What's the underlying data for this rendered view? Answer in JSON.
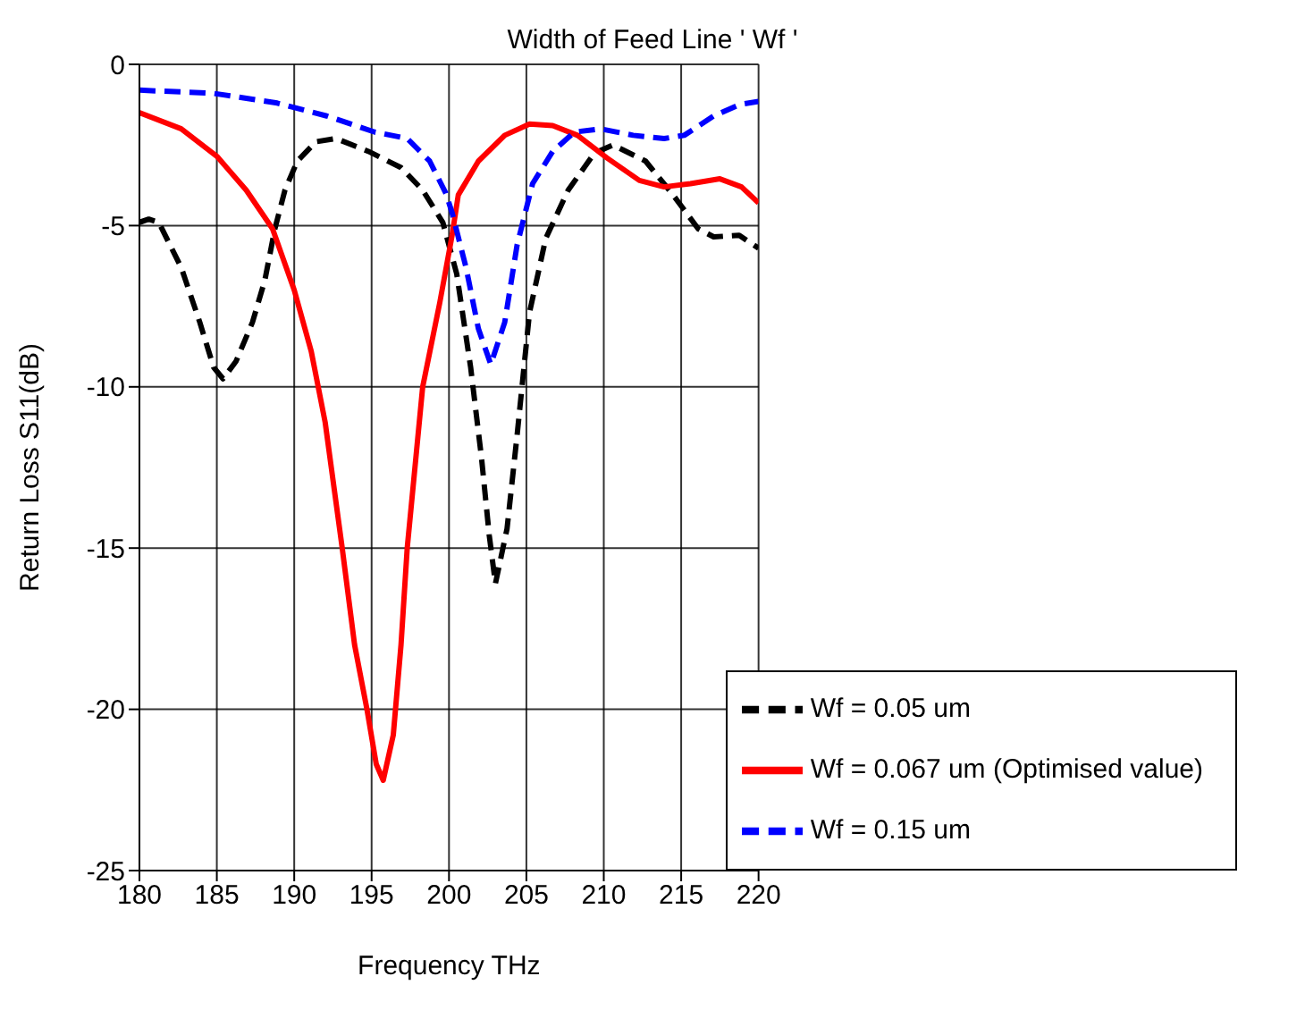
{
  "chart_data": {
    "type": "line",
    "title": "Width of Feed Line ' Wf '",
    "xlabel": "Frequency THz",
    "ylabel": "Return Loss S11(dB)",
    "xlim": [
      180,
      220
    ],
    "xticks": [
      180,
      185,
      190,
      195,
      200,
      205,
      210,
      215,
      220
    ],
    "ylim": [
      -25,
      0
    ],
    "yticks": [
      -25,
      -20,
      -15,
      -10,
      -5,
      0
    ],
    "grid": true,
    "legend": "bottom right",
    "marker": "none",
    "series": [
      {
        "name": "Wf = 0.05 um",
        "color": "#000000",
        "line_style": "dashed",
        "x": [
          180,
          180.6,
          181.25,
          182.7,
          183.9,
          184.8,
          185.4,
          186.25,
          187.3,
          188.1,
          188.75,
          189.4,
          190.2,
          191.4,
          192.7,
          194.8,
          196.9,
          198.3,
          199.6,
          200.5,
          201.4,
          202.1,
          202.6,
          203,
          203.75,
          204.4,
          205.2,
          206.25,
          207.7,
          209.4,
          210.6,
          212.7,
          214.4,
          216.1,
          217.1,
          218.75,
          220
        ],
        "values": [
          -4.9,
          -4.8,
          -4.9,
          -6.3,
          -8,
          -9.4,
          -9.75,
          -9.2,
          -8,
          -6.7,
          -5.1,
          -3.9,
          -3,
          -2.4,
          -2.3,
          -2.7,
          -3.2,
          -3.9,
          -4.9,
          -6.5,
          -9.4,
          -12.2,
          -14.6,
          -16.1,
          -14.4,
          -11.5,
          -7.7,
          -5.4,
          -3.9,
          -2.75,
          -2.5,
          -3,
          -4,
          -5.1,
          -5.35,
          -5.3,
          -5.7
        ]
      },
      {
        "name": "Wf = 0.067 um (Optimised value)",
        "color": "#ff0000",
        "line_style": "solid",
        "x": [
          180,
          182.7,
          185,
          186.9,
          188.6,
          190,
          191.1,
          192,
          193.1,
          193.9,
          194.7,
          195.3,
          195.75,
          196.4,
          196.9,
          197.3,
          197.9,
          198.3,
          199.4,
          200.2,
          200.6,
          201.9,
          203.6,
          205.2,
          206.7,
          208.3,
          210.2,
          212.3,
          213.9,
          215.6,
          217.5,
          218.9,
          220
        ],
        "values": [
          -1.5,
          -2,
          -2.85,
          -3.9,
          -5.1,
          -7,
          -8.9,
          -11.1,
          -15,
          -18,
          -20,
          -21.7,
          -22.2,
          -20.8,
          -18,
          -15,
          -12,
          -10,
          -7.4,
          -5.3,
          -4.05,
          -3,
          -2.2,
          -1.85,
          -1.9,
          -2.2,
          -2.9,
          -3.6,
          -3.8,
          -3.7,
          -3.55,
          -3.8,
          -4.3
        ]
      },
      {
        "name": "Wf = 0.15 um",
        "color": "#0000ff",
        "line_style": "dashed",
        "x": [
          180,
          184.8,
          188.9,
          192.1,
          195.2,
          197.3,
          198.75,
          199.8,
          200.2,
          201.1,
          201.9,
          202.7,
          203.6,
          204.4,
          205.4,
          206.7,
          208.1,
          209.8,
          211.9,
          213.9,
          215.2,
          217.1,
          218.75,
          220
        ],
        "values": [
          -0.8,
          -0.9,
          -1.2,
          -1.6,
          -2.1,
          -2.3,
          -3,
          -4,
          -4.6,
          -6.3,
          -8.2,
          -9.3,
          -8,
          -5.6,
          -3.7,
          -2.7,
          -2.1,
          -2,
          -2.2,
          -2.3,
          -2.2,
          -1.6,
          -1.25,
          -1.15
        ]
      }
    ]
  }
}
